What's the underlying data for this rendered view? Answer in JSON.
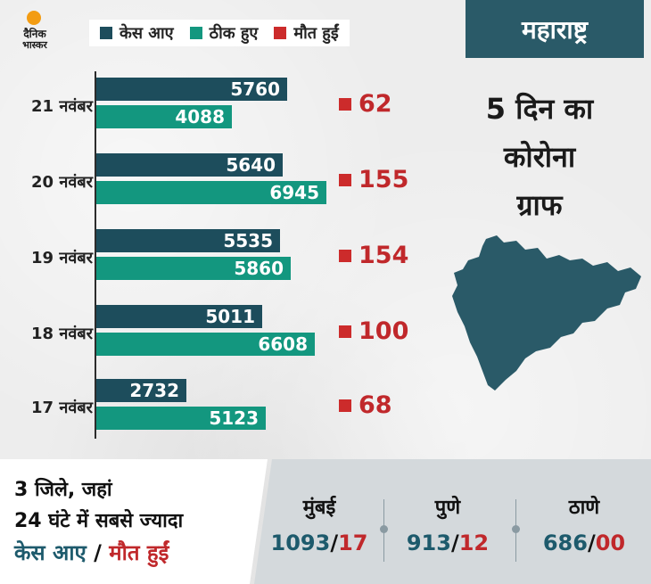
{
  "logo": {
    "line1": "दैनिक",
    "line2": "भास्कर"
  },
  "legend": [
    {
      "label": "केस आए",
      "color": "#1d4d5c"
    },
    {
      "label": "ठीक हुए",
      "color": "#13977f"
    },
    {
      "label": "मौत हुईं",
      "color": "#cc2b2b"
    }
  ],
  "title": {
    "state": "महाराष्ट्र",
    "line1": "5 दिन का",
    "line2": "कोरोना",
    "line3": "ग्राफ"
  },
  "chart_data": {
    "type": "bar",
    "orientation": "horizontal",
    "categories": [
      "21 नवंबर",
      "20 नवंबर",
      "19 नवंबर",
      "18 नवंबर",
      "17 नवंबर"
    ],
    "series": [
      {
        "name": "केस आए",
        "values": [
          5760,
          5640,
          5535,
          5011,
          2732
        ]
      },
      {
        "name": "ठीक हुए",
        "values": [
          4088,
          6945,
          5860,
          6608,
          5123
        ]
      },
      {
        "name": "मौत हुईं",
        "values": [
          62,
          155,
          154,
          100,
          68
        ]
      }
    ],
    "colors": [
      "#1d4d5c",
      "#13977f",
      "#cc2b2b"
    ]
  },
  "bottom": {
    "line1": "3 जिले, जहां",
    "line2": "24 घंटे में सबसे ज्यादा",
    "cases_label": "केस आए",
    "slash": " / ",
    "deaths_label": "मौत हुईं",
    "cities": [
      {
        "name": "मुंबई",
        "cases": "1093",
        "deaths": "17"
      },
      {
        "name": "पुणे",
        "cases": "913",
        "deaths": "12"
      },
      {
        "name": "ठाणे",
        "cases": "686",
        "deaths": "00"
      }
    ]
  }
}
